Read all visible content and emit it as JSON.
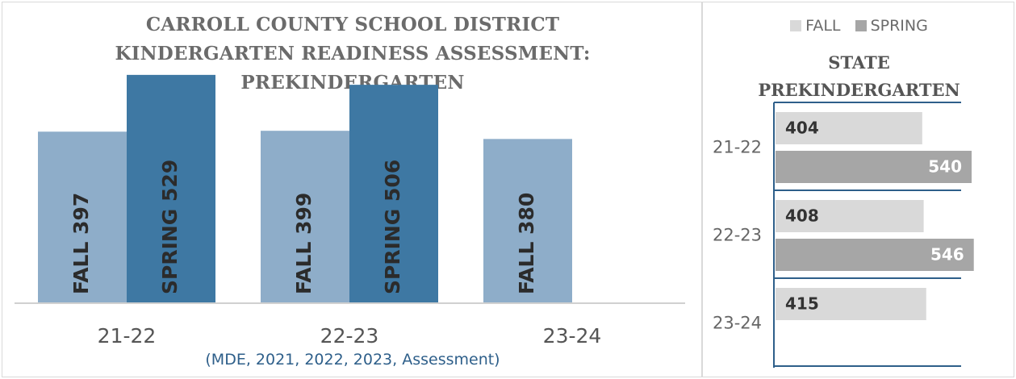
{
  "main_chart": {
    "title_lines": [
      "CARROLL COUNTY SCHOOL DISTRICT",
      "KINDERGARTEN READINESS ASSESSMENT:",
      "PREKINDERGARTEN"
    ],
    "source": "(MDE, 2021, 2022, 2023, Assessment)"
  },
  "state_chart": {
    "title_lines": [
      "STATE",
      "PREKINDERGARTEN"
    ],
    "legend": [
      {
        "label": "FALL",
        "color": "#d9d9d9"
      },
      {
        "label": "SPRING",
        "color": "#a6a6a6"
      }
    ]
  },
  "chart_data": [
    {
      "type": "bar",
      "title": "CARROLL COUNTY SCHOOL DISTRICT KINDERGARTEN READINESS ASSESSMENT: PREKINDERGARTEN",
      "categories": [
        "21-22",
        "22-23",
        "23-24"
      ],
      "series": [
        {
          "name": "FALL",
          "values": [
            397,
            399,
            380
          ],
          "color": "#8eadc9"
        },
        {
          "name": "SPRING",
          "values": [
            529,
            506,
            null
          ],
          "color": "#3e78a3"
        }
      ],
      "ylim": [
        0,
        600
      ],
      "data_labels": [
        "FALL 397",
        "SPRING 529",
        "FALL 399",
        "SPRING 506",
        "FALL 380"
      ],
      "orientation": "vertical",
      "grid": false
    },
    {
      "type": "bar",
      "title": "STATE PREKINDERGARTEN",
      "categories": [
        "21-22",
        "22-23",
        "23-24"
      ],
      "series": [
        {
          "name": "FALL",
          "values": [
            404,
            408,
            415
          ],
          "color": "#d9d9d9"
        },
        {
          "name": "SPRING",
          "values": [
            540,
            546,
            null
          ],
          "color": "#a6a6a6"
        }
      ],
      "xlim": [
        0,
        600
      ],
      "orientation": "horizontal",
      "legend_position": "top",
      "grid": false
    }
  ]
}
